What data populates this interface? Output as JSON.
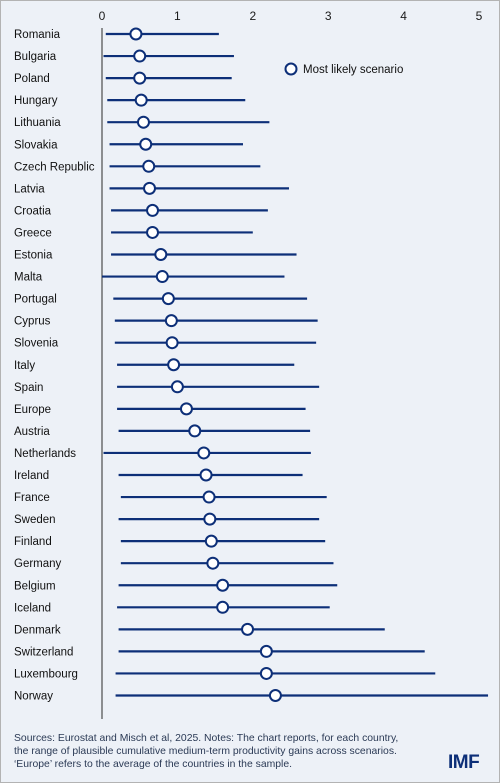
{
  "chart_data": {
    "type": "range-dot",
    "orientation": "horizontal",
    "xlim": [
      0,
      5
    ],
    "x_ticks": [
      0,
      1,
      2,
      3,
      4,
      5
    ],
    "legend": {
      "label": "Most likely scenario",
      "placement": "top-right"
    },
    "colors": {
      "series": "#0d2f78",
      "marker_fill": "#ffffff",
      "background": "#edf1f7"
    },
    "categories": [
      {
        "name": "Romania",
        "low": 0.05,
        "high": 1.55,
        "likely": 0.45
      },
      {
        "name": "Bulgaria",
        "low": 0.02,
        "high": 1.75,
        "likely": 0.5
      },
      {
        "name": "Poland",
        "low": 0.05,
        "high": 1.72,
        "likely": 0.5
      },
      {
        "name": "Hungary",
        "low": 0.07,
        "high": 1.9,
        "likely": 0.52
      },
      {
        "name": "Lithuania",
        "low": 0.07,
        "high": 2.22,
        "likely": 0.55
      },
      {
        "name": "Slovakia",
        "low": 0.1,
        "high": 1.87,
        "likely": 0.58
      },
      {
        "name": "Czech Republic",
        "low": 0.1,
        "high": 2.1,
        "likely": 0.62
      },
      {
        "name": "Latvia",
        "low": 0.1,
        "high": 2.48,
        "likely": 0.63
      },
      {
        "name": "Croatia",
        "low": 0.12,
        "high": 2.2,
        "likely": 0.67
      },
      {
        "name": "Greece",
        "low": 0.12,
        "high": 2.0,
        "likely": 0.67
      },
      {
        "name": "Estonia",
        "low": 0.12,
        "high": 2.58,
        "likely": 0.78
      },
      {
        "name": "Malta",
        "low": 0.0,
        "high": 2.42,
        "likely": 0.8
      },
      {
        "name": "Portugal",
        "low": 0.15,
        "high": 2.72,
        "likely": 0.88
      },
      {
        "name": "Cyprus",
        "low": 0.17,
        "high": 2.86,
        "likely": 0.92
      },
      {
        "name": "Slovenia",
        "low": 0.17,
        "high": 2.84,
        "likely": 0.93
      },
      {
        "name": "Italy",
        "low": 0.2,
        "high": 2.55,
        "likely": 0.95
      },
      {
        "name": "Spain",
        "low": 0.2,
        "high": 2.88,
        "likely": 1.0
      },
      {
        "name": "Europe",
        "low": 0.2,
        "high": 2.7,
        "likely": 1.12
      },
      {
        "name": "Austria",
        "low": 0.22,
        "high": 2.76,
        "likely": 1.23
      },
      {
        "name": "Netherlands",
        "low": 0.02,
        "high": 2.77,
        "likely": 1.35
      },
      {
        "name": "Ireland",
        "low": 0.22,
        "high": 2.66,
        "likely": 1.38
      },
      {
        "name": "France",
        "low": 0.25,
        "high": 2.98,
        "likely": 1.42
      },
      {
        "name": "Sweden",
        "low": 0.22,
        "high": 2.88,
        "likely": 1.43
      },
      {
        "name": "Finland",
        "low": 0.25,
        "high": 2.96,
        "likely": 1.45
      },
      {
        "name": "Germany",
        "low": 0.25,
        "high": 3.07,
        "likely": 1.47
      },
      {
        "name": "Belgium",
        "low": 0.22,
        "high": 3.12,
        "likely": 1.6
      },
      {
        "name": "Iceland",
        "low": 0.2,
        "high": 3.02,
        "likely": 1.6
      },
      {
        "name": "Denmark",
        "low": 0.22,
        "high": 3.75,
        "likely": 1.93
      },
      {
        "name": "Switzerland",
        "low": 0.22,
        "high": 4.28,
        "likely": 2.18
      },
      {
        "name": "Luxembourg",
        "low": 0.18,
        "high": 4.42,
        "likely": 2.18
      },
      {
        "name": "Norway",
        "low": 0.18,
        "high": 5.12,
        "likely": 2.3
      }
    ]
  },
  "footnote": "Sources: Eurostat and Misch et al, 2025. Notes: The chart reports, for each country, the range of plausible cumulative medium-term productivity gains across scenarios. ‘Europe’ refers to the average of the countries in the sample.",
  "logo": "IMF"
}
